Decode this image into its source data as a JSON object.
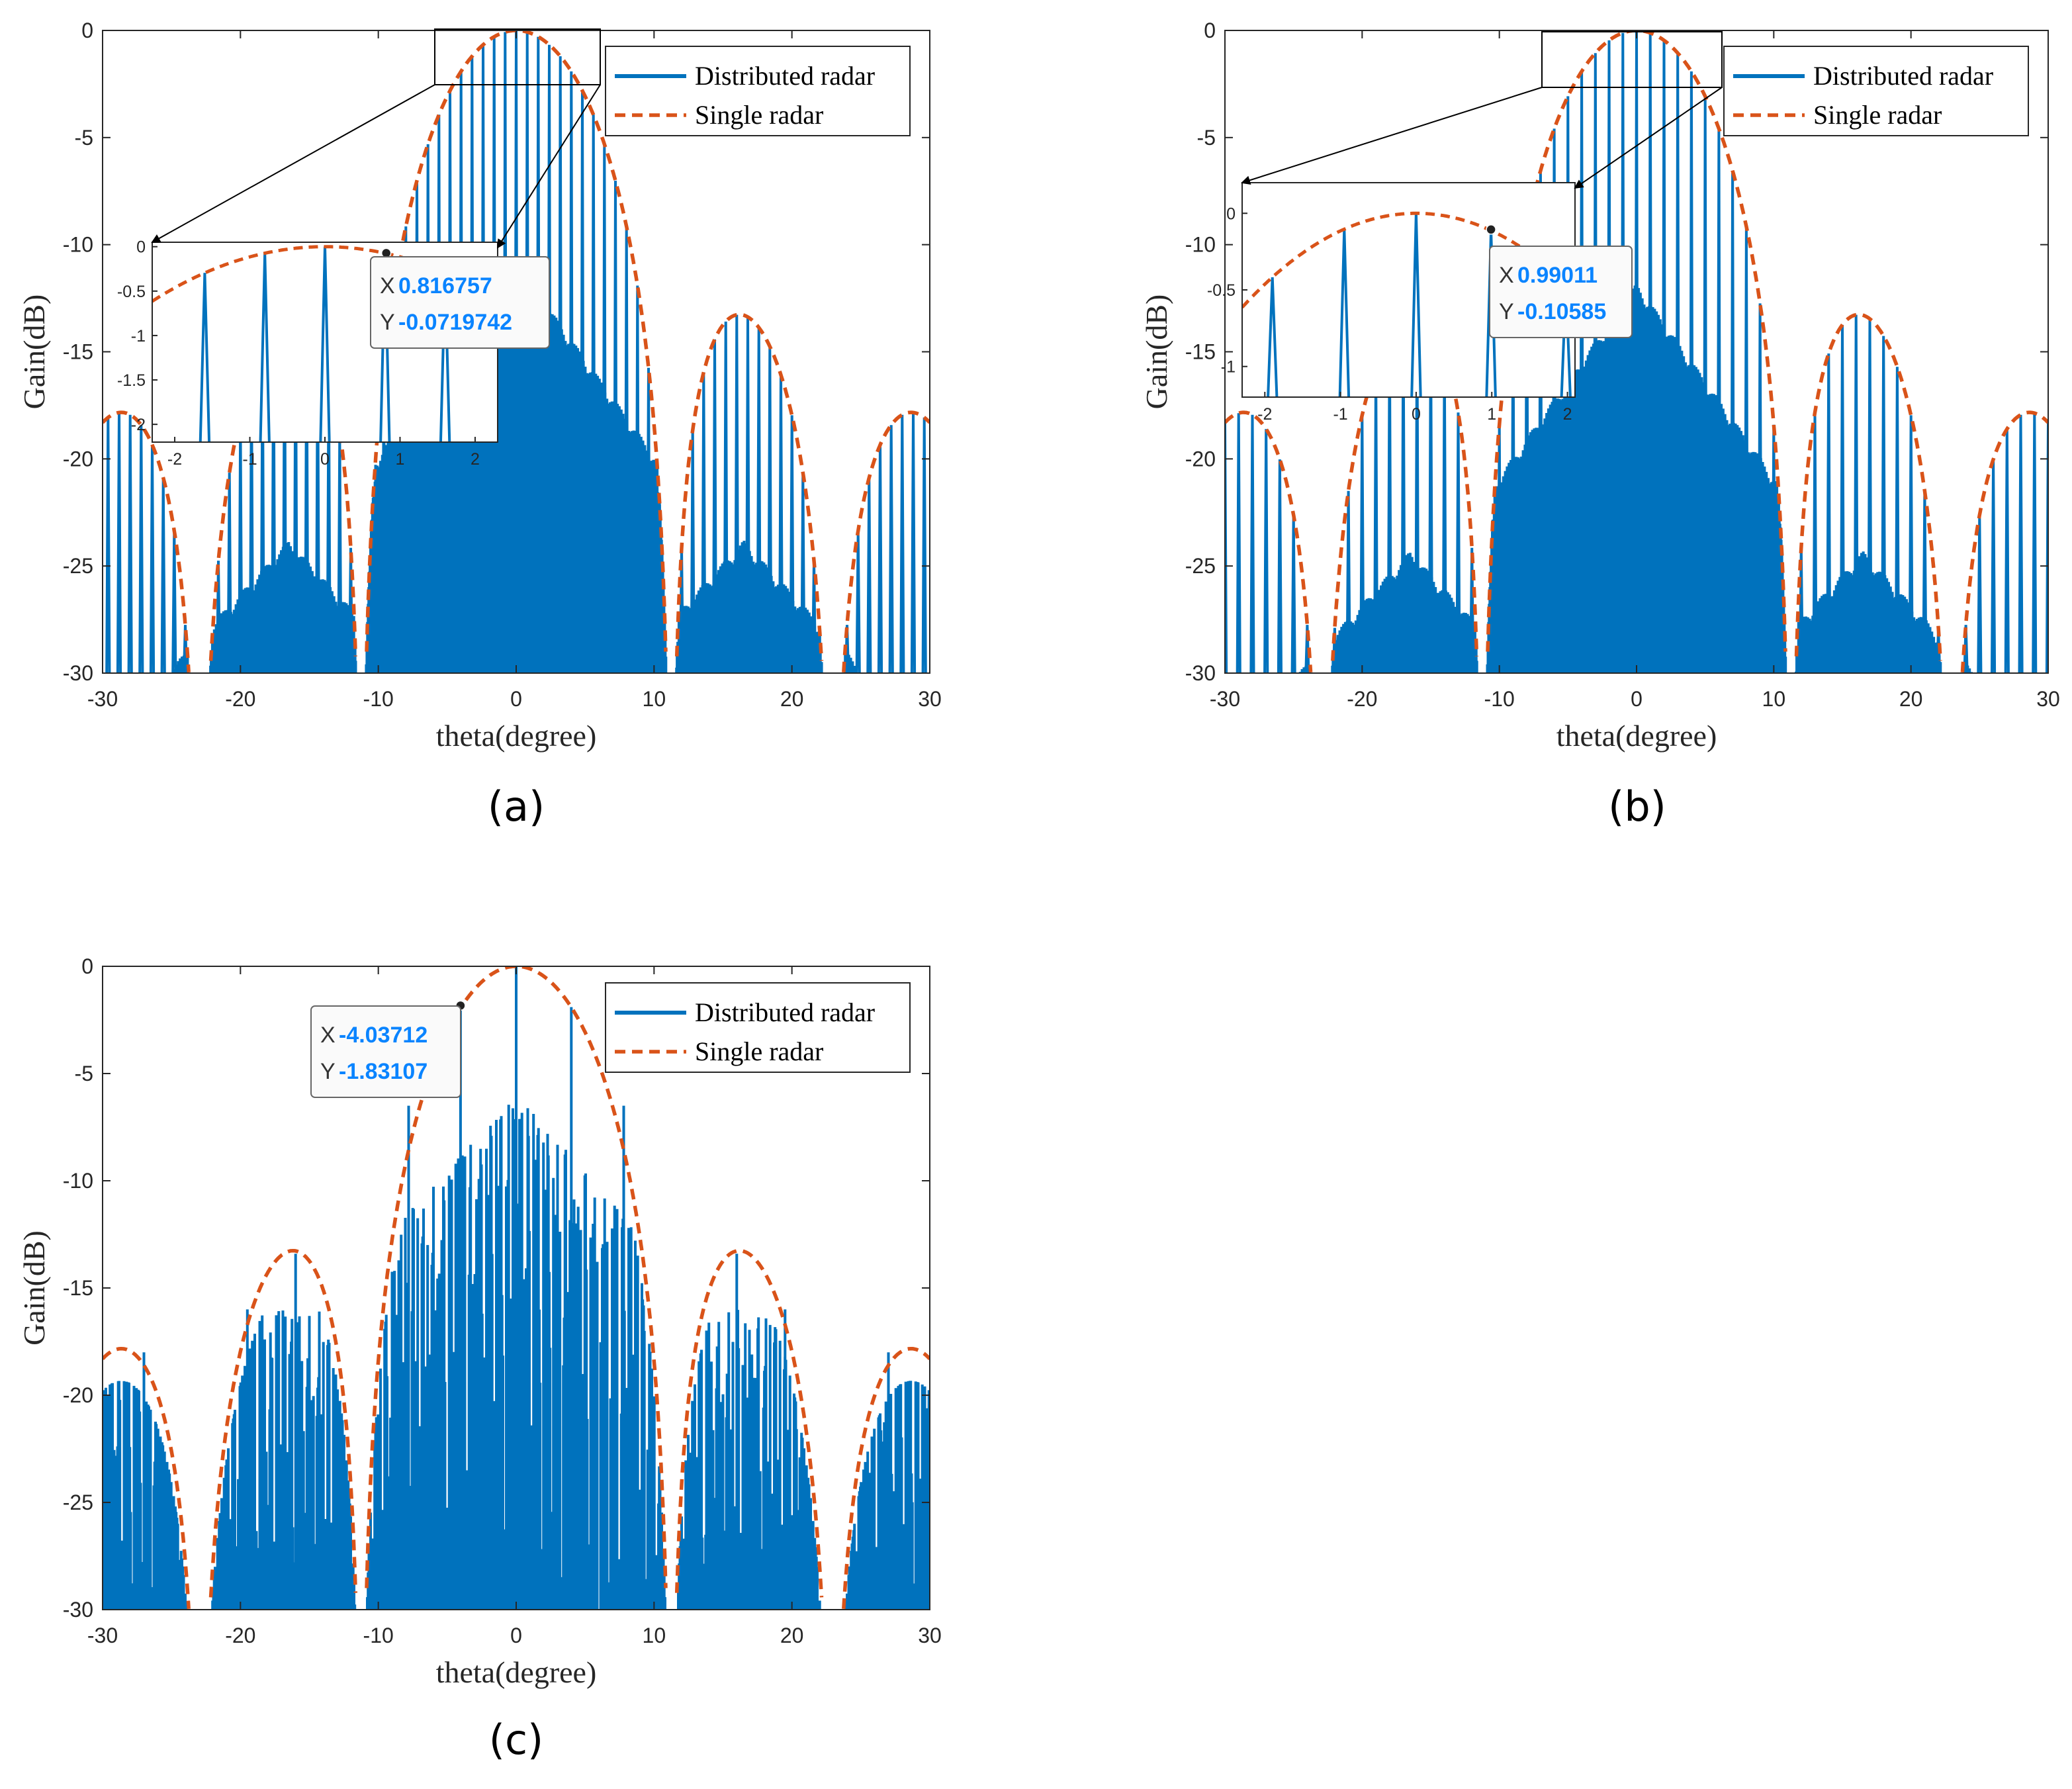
{
  "figure": {
    "captions": [
      "(a)",
      "(b)",
      "(c)"
    ]
  },
  "colors": {
    "distributed": "#0072BD",
    "single": "#D95319",
    "axis": "#262626",
    "datatip_value": "#0a84ff"
  },
  "chart_data": [
    {
      "type": "line",
      "panel": "a",
      "xlabel": "theta(degree)",
      "ylabel": "Gain(dB)",
      "xlim": [
        -30,
        30
      ],
      "ylim": [
        -30,
        0
      ],
      "xticks": [
        "-30",
        "-20",
        "-10",
        "0",
        "10",
        "20",
        "30"
      ],
      "yticks": [
        "0",
        "-5",
        "-10",
        "-15",
        "-20",
        "-25",
        "-30"
      ],
      "legend": [
        "Distributed radar",
        "Single radar"
      ],
      "legend_position": "top-right",
      "series": [
        {
          "name": "Distributed radar",
          "style": "solid",
          "lobe_spacing_deg": 0.8,
          "floor_mainlobe_db": -12,
          "floor_sidelobe_db": -25
        },
        {
          "name": "Single radar",
          "style": "dashed",
          "mainlobe_null_deg": 11.2,
          "first_sidelobe_peak_db": -13.3
        }
      ],
      "datatip": {
        "x_label": "X",
        "x": "0.816757",
        "y_label": "Y",
        "y": "-0.0719742"
      },
      "inset": {
        "xlim": [
          -2.3,
          2.3
        ],
        "ylim": [
          -2.2,
          0.05
        ],
        "xticks": [
          "-2",
          "-1",
          "0",
          "1",
          "2"
        ],
        "yticks": [
          "0",
          "-0.5",
          "-1",
          "-1.5",
          "-2"
        ],
        "lobe_positions": [
          -1.6,
          -0.8,
          0,
          0.8,
          1.6
        ]
      }
    },
    {
      "type": "line",
      "panel": "b",
      "xlabel": "theta(degree)",
      "ylabel": "Gain(dB)",
      "xlim": [
        -30,
        30
      ],
      "ylim": [
        -30,
        0
      ],
      "xticks": [
        "-30",
        "-20",
        "-10",
        "0",
        "10",
        "20",
        "30"
      ],
      "yticks": [
        "0",
        "-5",
        "-10",
        "-15",
        "-20",
        "-25",
        "-30"
      ],
      "legend": [
        "Distributed radar",
        "Single radar"
      ],
      "legend_position": "top-right",
      "series": [
        {
          "name": "Distributed radar",
          "style": "solid",
          "lobe_spacing_deg": 1.0,
          "floor_mainlobe_db": -13,
          "floor_sidelobe_db": -25.5
        },
        {
          "name": "Single radar",
          "style": "dashed",
          "mainlobe_null_deg": 11.2,
          "first_sidelobe_peak_db": -13.3
        }
      ],
      "datatip": {
        "x_label": "X",
        "x": "0.99011",
        "y_label": "Y",
        "y": "-0.10585"
      },
      "inset": {
        "xlim": [
          -2.3,
          2.1
        ],
        "ylim": [
          -1.2,
          0.2
        ],
        "xticks": [
          "-2",
          "-1",
          "0",
          "1",
          "2"
        ],
        "yticks": [
          "0",
          "-0.5",
          "-1"
        ],
        "lobe_positions": [
          -1.9,
          -0.95,
          0,
          0.99,
          1.98
        ]
      }
    },
    {
      "type": "line",
      "panel": "c",
      "xlabel": "theta(degree)",
      "ylabel": "Gain(dB)",
      "xlim": [
        -30,
        30
      ],
      "ylim": [
        -30,
        0
      ],
      "xticks": [
        "-30",
        "-20",
        "-10",
        "0",
        "10",
        "20",
        "30"
      ],
      "yticks": [
        "0",
        "-5",
        "-10",
        "-15",
        "-20",
        "-25",
        "-30"
      ],
      "legend": [
        "Distributed radar",
        "Single radar"
      ],
      "legend_position": "top-right",
      "series": [
        {
          "name": "Distributed radar",
          "style": "solid",
          "pattern": "irregular"
        },
        {
          "name": "Single radar",
          "style": "dashed",
          "mainlobe_null_deg": 11.2,
          "first_sidelobe_peak_db": -13.3
        }
      ],
      "datatip": {
        "x_label": "X",
        "x": "-4.03712",
        "y_label": "Y",
        "y": "-1.83107"
      }
    }
  ]
}
